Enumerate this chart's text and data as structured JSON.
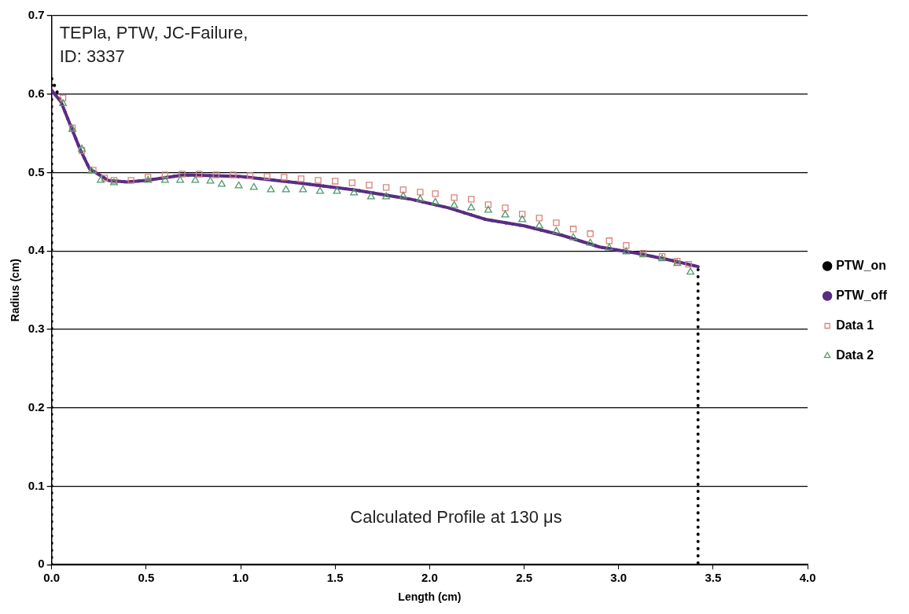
{
  "chart_data": {
    "type": "line",
    "xlabel": "Length (cm)",
    "ylabel": "Radius (cm)",
    "xlim": [
      0,
      4
    ],
    "xticks": [
      {
        "value": 0,
        "label": "0.0"
      },
      {
        "value": 0.5,
        "label": "0.5"
      },
      {
        "value": 1,
        "label": "1.0"
      },
      {
        "value": 1.5,
        "label": "1.5"
      },
      {
        "value": 2,
        "label": "2.0"
      },
      {
        "value": 2.5,
        "label": "2.5"
      },
      {
        "value": 3,
        "label": "3.0"
      },
      {
        "value": 3.5,
        "label": "3.5"
      },
      {
        "value": 4,
        "label": "4.0"
      }
    ],
    "ylim": [
      0,
      0.7
    ],
    "yticks": [
      0,
      0.1,
      0.2,
      0.3,
      0.4,
      0.5,
      0.6,
      0.7
    ],
    "grid": "y",
    "legend": "right",
    "annotations": [
      "TEPla, PTW, JC-Failure,",
      "ID: 3337",
      "Calculated Profile at 130 μs"
    ],
    "series": [
      {
        "name": "PTW_on",
        "line_style": "dotted",
        "marker": "none",
        "color": "#000000",
        "x": [
          0,
          0,
          0.05,
          0.1,
          0.15,
          0.2,
          0.3,
          0.4,
          0.5,
          0.7,
          1.0,
          1.3,
          1.6,
          1.9,
          2.1,
          2.3,
          2.5,
          2.7,
          2.9,
          3.1,
          3.3,
          3.42,
          3.42
        ],
        "values": [
          0,
          0.62,
          0.59,
          0.56,
          0.53,
          0.505,
          0.49,
          0.488,
          0.49,
          0.497,
          0.495,
          0.487,
          0.478,
          0.466,
          0.455,
          0.44,
          0.432,
          0.42,
          0.405,
          0.397,
          0.387,
          0.38,
          0
        ]
      },
      {
        "name": "PTW_off",
        "line_style": "solid",
        "marker": "none",
        "color": "#5b2c83",
        "x": [
          0,
          0.05,
          0.1,
          0.15,
          0.2,
          0.3,
          0.4,
          0.5,
          0.7,
          1.0,
          1.3,
          1.6,
          1.9,
          2.1,
          2.3,
          2.5,
          2.7,
          2.9,
          3.1,
          3.3,
          3.42
        ],
        "values": [
          0.605,
          0.59,
          0.56,
          0.53,
          0.505,
          0.49,
          0.488,
          0.49,
          0.497,
          0.495,
          0.487,
          0.478,
          0.466,
          0.455,
          0.44,
          0.432,
          0.42,
          0.405,
          0.397,
          0.387,
          0.38
        ]
      },
      {
        "name": "Data 1",
        "type": "scatter",
        "marker": "square",
        "color": "#d9827a",
        "x": [
          0.06,
          0.11,
          0.16,
          0.22,
          0.28,
          0.33,
          0.42,
          0.51,
          0.6,
          0.69,
          0.78,
          0.87,
          0.96,
          1.05,
          1.14,
          1.23,
          1.32,
          1.41,
          1.5,
          1.59,
          1.68,
          1.77,
          1.86,
          1.95,
          2.03,
          2.13,
          2.22,
          2.31,
          2.4,
          2.49,
          2.58,
          2.67,
          2.76,
          2.85,
          2.95,
          3.04,
          3.13,
          3.23,
          3.31,
          3.37
        ],
        "values": [
          0.595,
          0.557,
          0.528,
          0.503,
          0.493,
          0.49,
          0.49,
          0.494,
          0.497,
          0.498,
          0.498,
          0.497,
          0.497,
          0.496,
          0.495,
          0.494,
          0.492,
          0.49,
          0.489,
          0.487,
          0.484,
          0.481,
          0.478,
          0.475,
          0.473,
          0.468,
          0.466,
          0.459,
          0.455,
          0.447,
          0.442,
          0.436,
          0.428,
          0.422,
          0.413,
          0.407,
          0.397,
          0.393,
          0.387,
          0.383
        ]
      },
      {
        "name": "Data 2",
        "type": "scatter",
        "marker": "triangle",
        "color": "#4f9a6a",
        "x": [
          0.06,
          0.11,
          0.16,
          0.21,
          0.26,
          0.33,
          0.51,
          0.6,
          0.68,
          0.76,
          0.84,
          0.9,
          0.99,
          1.07,
          1.16,
          1.24,
          1.33,
          1.42,
          1.51,
          1.6,
          1.69,
          1.77,
          1.86,
          1.95,
          2.03,
          2.13,
          2.22,
          2.31,
          2.4,
          2.49,
          2.58,
          2.67,
          2.76,
          2.85,
          2.95,
          3.04,
          3.13,
          3.23,
          3.31,
          3.38
        ],
        "values": [
          0.588,
          0.555,
          0.53,
          0.502,
          0.49,
          0.487,
          0.49,
          0.49,
          0.49,
          0.49,
          0.489,
          0.485,
          0.483,
          0.481,
          0.478,
          0.478,
          0.478,
          0.476,
          0.476,
          0.474,
          0.469,
          0.469,
          0.47,
          0.466,
          0.462,
          0.458,
          0.455,
          0.452,
          0.446,
          0.44,
          0.432,
          0.425,
          0.417,
          0.41,
          0.404,
          0.399,
          0.395,
          0.39,
          0.384,
          0.373
        ]
      }
    ]
  }
}
